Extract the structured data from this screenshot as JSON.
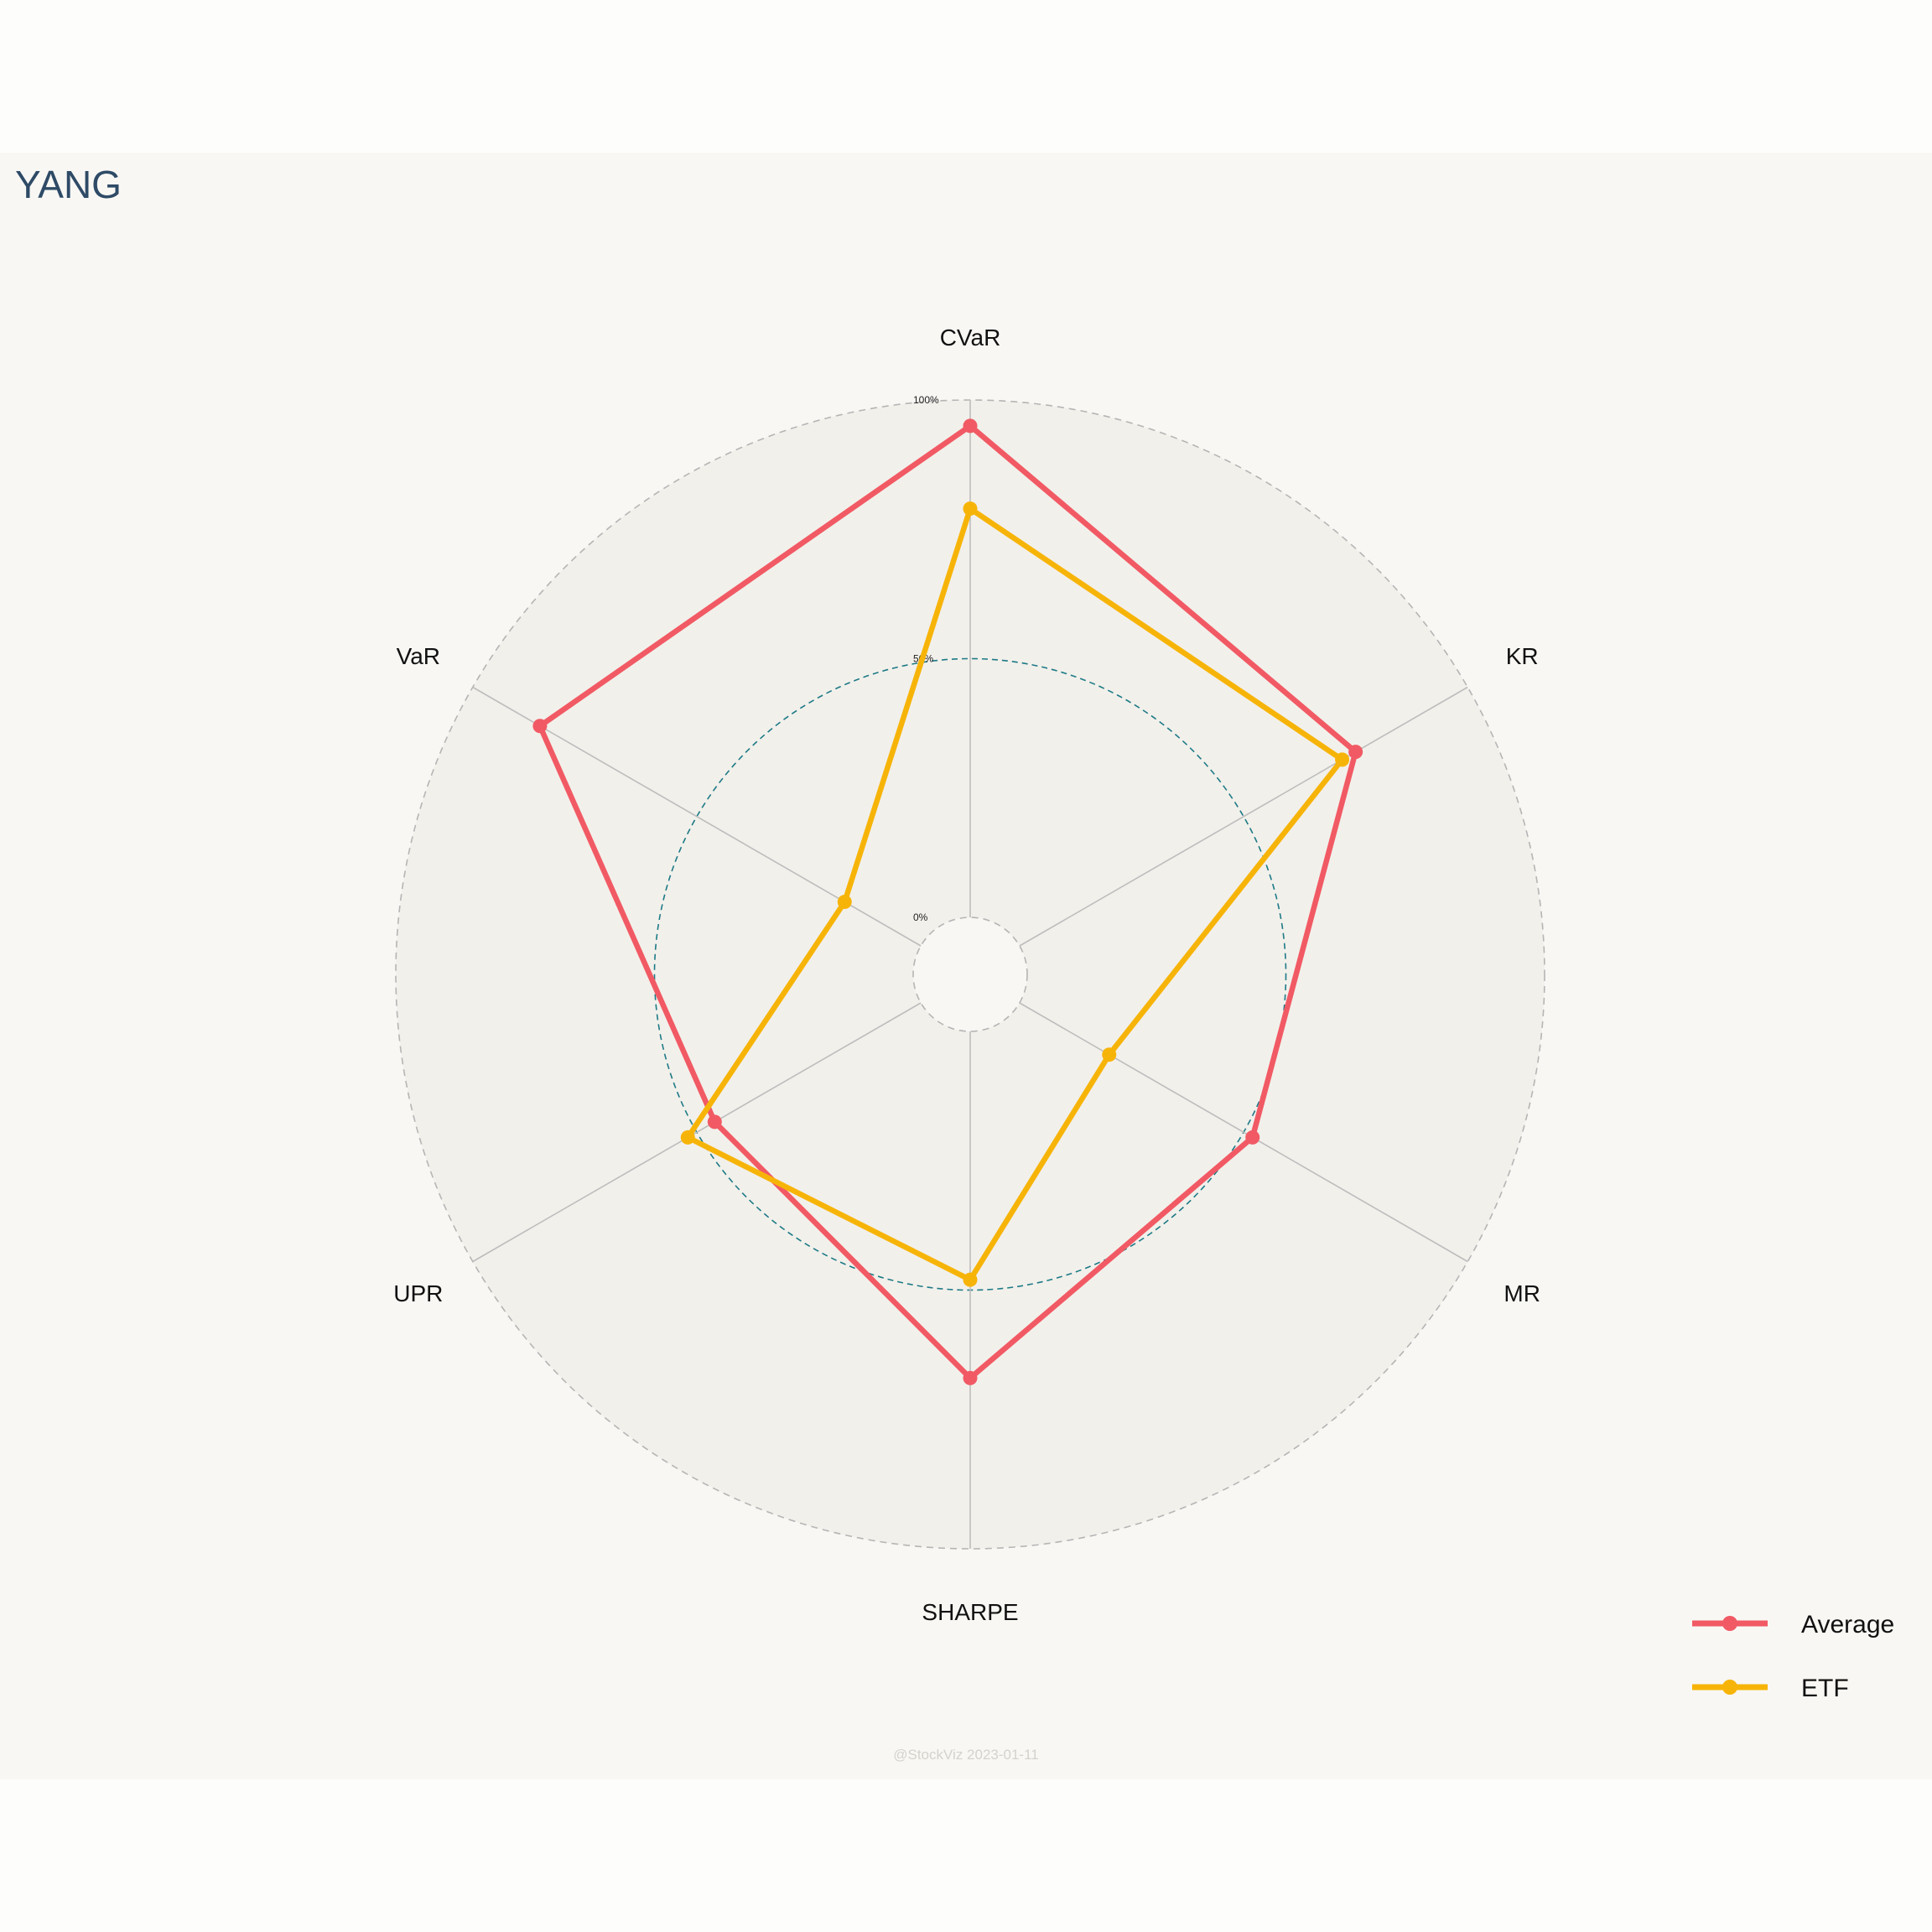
{
  "chart_data": {
    "type": "radar",
    "title": "YANG",
    "axes": [
      "CVaR",
      "KR",
      "MR",
      "SHARPE",
      "UPR",
      "VaR"
    ],
    "radial_range": [
      0,
      100
    ],
    "radial_ticks": [
      {
        "value": 0,
        "label": "0%"
      },
      {
        "value": 50,
        "label": "50%"
      },
      {
        "value": 100,
        "label": "100%"
      }
    ],
    "series": [
      {
        "name": "Average",
        "color": "#f15a64",
        "values": [
          95,
          75,
          52,
          67,
          46,
          85
        ]
      },
      {
        "name": "ETF",
        "color": "#f7b408",
        "values": [
          79,
          72,
          20,
          48,
          52,
          17
        ]
      }
    ],
    "legend_position": "bottom-right",
    "footer": "@StockViz 2023-01-11",
    "colors": {
      "plot_background": "#f8f7f4",
      "outer_ring_fill": "#f2f0eb",
      "inner_ring_fill": "#f2f0eb",
      "mid_ring_stroke": "#1d7a86",
      "grid_stroke": "#bdbdbd",
      "title": "#2e4a66"
    }
  }
}
